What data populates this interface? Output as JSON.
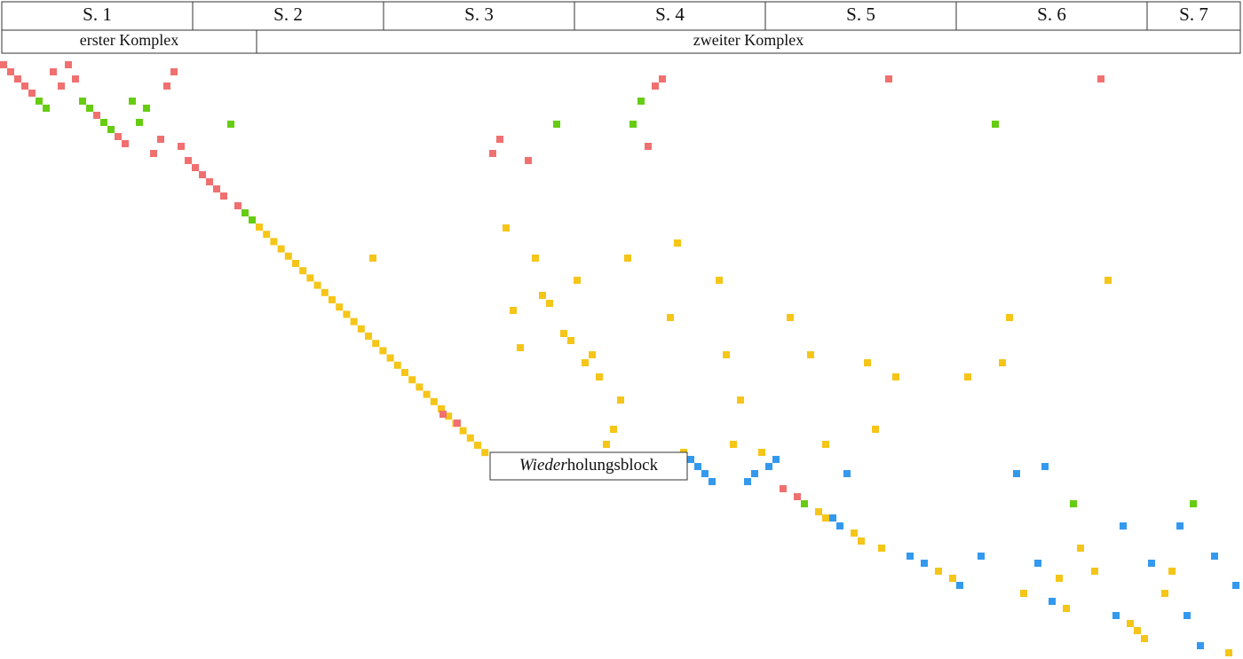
{
  "header": {
    "pages": [
      "S. 1",
      "S. 2",
      "S. 3",
      "S. 4",
      "S. 5",
      "S. 6",
      "S. 7"
    ],
    "sections": [
      "erster Komplex",
      "zweiter Komplex"
    ]
  },
  "box": {
    "label_italic": "Wieder",
    "label_rest": "holungsblock"
  }
}
